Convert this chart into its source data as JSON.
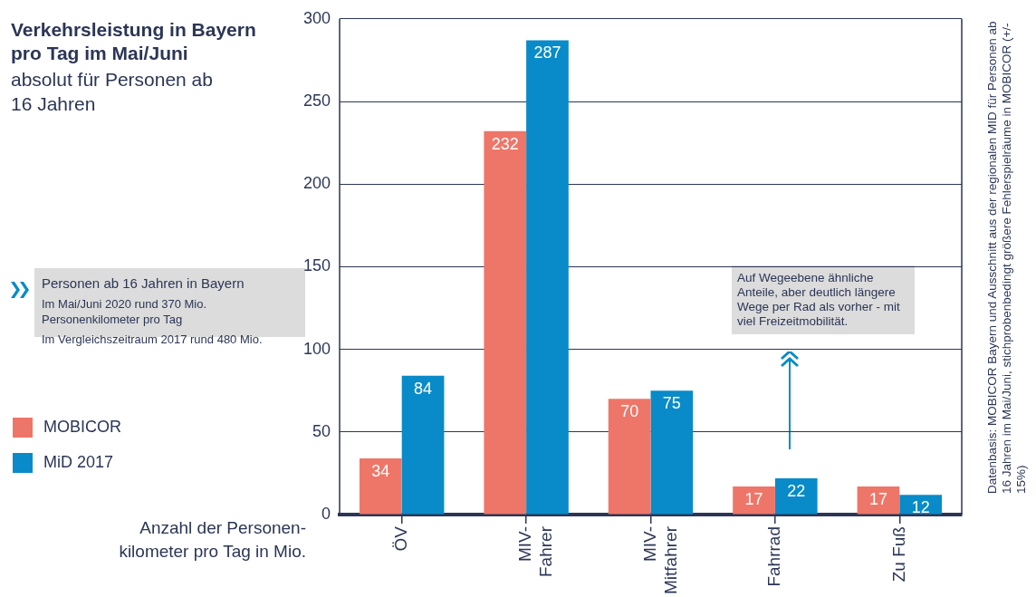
{
  "chart_data": {
    "type": "bar",
    "title": "Verkehrsleistung in Bayern pro Tag im Mai/Juni",
    "subtitle": "absolut für Personen ab 16 Jahren",
    "xlabel": "Anzahl der Personen-kilometer pro Tag in Mio.",
    "categories": [
      "ÖV",
      "MIV-Fahrer",
      "MIV-Mitfahrer",
      "Fahrrad",
      "Zu Fuß"
    ],
    "series": [
      {
        "name": "MOBICOR",
        "color": "#ee7668",
        "values": [
          34,
          232,
          70,
          17,
          17
        ]
      },
      {
        "name": "MiD 2017",
        "color": "#088bc8",
        "values": [
          84,
          287,
          75,
          22,
          12
        ]
      }
    ],
    "ylim": [
      0,
      300
    ],
    "yticks": [
      0,
      50,
      100,
      150,
      200,
      250,
      300
    ],
    "grid": "y",
    "legend": "left",
    "data_labels": true,
    "annotations": [
      "Personen ab 16 Jahren in Bayern",
      "Im Mai/Juni 2020 rund 370 Mio. Personenkilometer pro Tag",
      "Im Vergleichszeitraum 2017 rund 480 Mio.",
      "Auf Wegeebene ähnliche Anteile, aber deutlich längere Wege per Rad als vorher - mit viel Freizeitmobilität.",
      "Datenbasis: MOBICOR Bayern und Ausschnitt aus der regionalen MID für Personen ab 16 Jahren im Mai/Juni, stichprobenbedingt größere Fehlerspielräume in MOBICOR (+/- 15%)"
    ]
  }
}
